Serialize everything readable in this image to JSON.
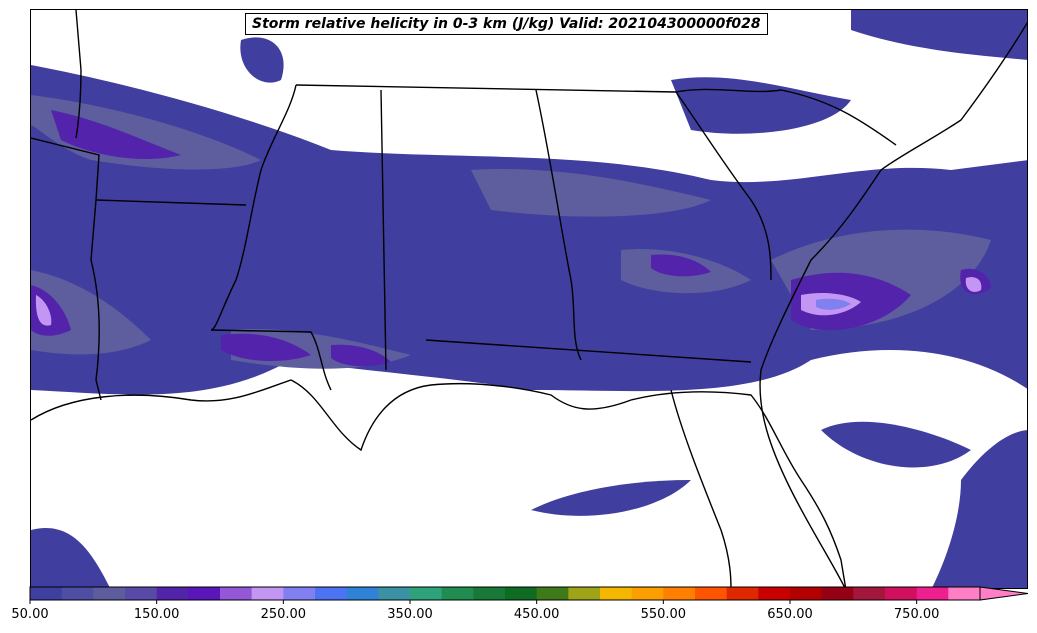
{
  "title": "Storm relative helicity in 0-3 km (J/kg) Valid: 202104300000f028",
  "colorbar": {
    "min": 50,
    "max": 800,
    "step": 25,
    "extend": "max",
    "tick_labels": [
      "50.00",
      "150.00",
      "250.00",
      "350.00",
      "450.00",
      "550.00",
      "650.00",
      "750.00"
    ],
    "colors": [
      "#3f3f9f",
      "#4e4ea2",
      "#5d5d9e",
      "#5a4aa8",
      "#5224aa",
      "#5a16b8",
      "#9457d7",
      "#c496f4",
      "#8080f0",
      "#4c74f2",
      "#2f83d6",
      "#3a92a4",
      "#2ea27b",
      "#1f8c50",
      "#187838",
      "#0e6b22",
      "#3f7a19",
      "#9ea317",
      "#f3b700",
      "#fb9e00",
      "#ff7f00",
      "#ff5500",
      "#e02800",
      "#c80000",
      "#b20000",
      "#960014",
      "#a3173d",
      "#d0105e",
      "#ee1f8f",
      "#ff7fc6"
    ]
  },
  "icons": [
    "colorbar-extend-arrow-icon"
  ]
}
